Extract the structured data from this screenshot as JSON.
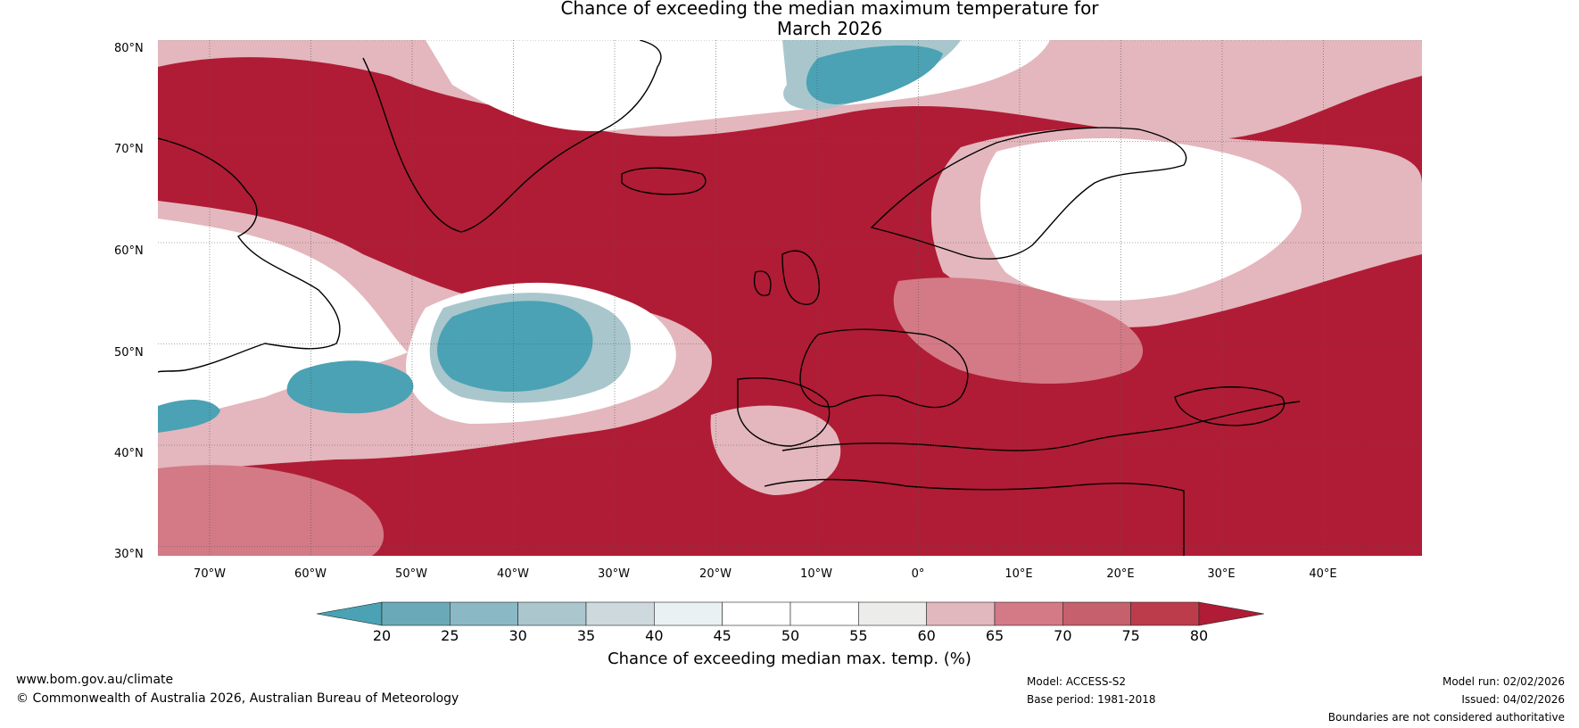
{
  "title": {
    "line1": "Chance of exceeding the median maximum temperature for",
    "line2": "March 2026"
  },
  "map": {
    "region": "North Atlantic and Europe",
    "lat_labels": [
      "80°N",
      "70°N",
      "60°N",
      "50°N",
      "40°N",
      "30°N"
    ],
    "lon_labels": [
      "70°W",
      "60°W",
      "50°W",
      "40°W",
      "30°W",
      "20°W",
      "10°W",
      "0°",
      "10°E",
      "20°E",
      "30°E",
      "40°E"
    ],
    "colors": {
      "very_high": "#b01c35",
      "high": "#c64657",
      "mid_high": "#d37a86",
      "low_high": "#e3b7bd",
      "neutral": "#ffffff",
      "neutral_grey": "#ececec",
      "low": "#a9c6cd",
      "very_low": "#4aa2b4",
      "land_outline": "#000000"
    }
  },
  "colorbar": {
    "ticks": [
      "20",
      "25",
      "30",
      "35",
      "40",
      "45",
      "50",
      "55",
      "60",
      "65",
      "70",
      "75",
      "80"
    ],
    "colors": [
      "#4aa2b4",
      "#6aaab8",
      "#8ab9c5",
      "#abc6cd",
      "#cdd9dc",
      "#eaf1f3",
      "#ffffff",
      "#ffffff",
      "#ececea",
      "#e1b8bd",
      "#d37a86",
      "#c6606c",
      "#bd3c4c",
      "#b01c35"
    ],
    "label": "Chance of exceeding median max. temp. (%)"
  },
  "footer": {
    "website": "www.bom.gov.au/climate",
    "copyright": "© Commonwealth of Australia 2026, Australian Bureau of Meteorology",
    "model": "Model: ACCESS-S2",
    "base_period": "Base period: 1981-2018",
    "model_run": "Model run: 02/02/2026",
    "issued": "Issued: 04/02/2026",
    "disclaimer": "Boundaries are not considered authoritative"
  }
}
